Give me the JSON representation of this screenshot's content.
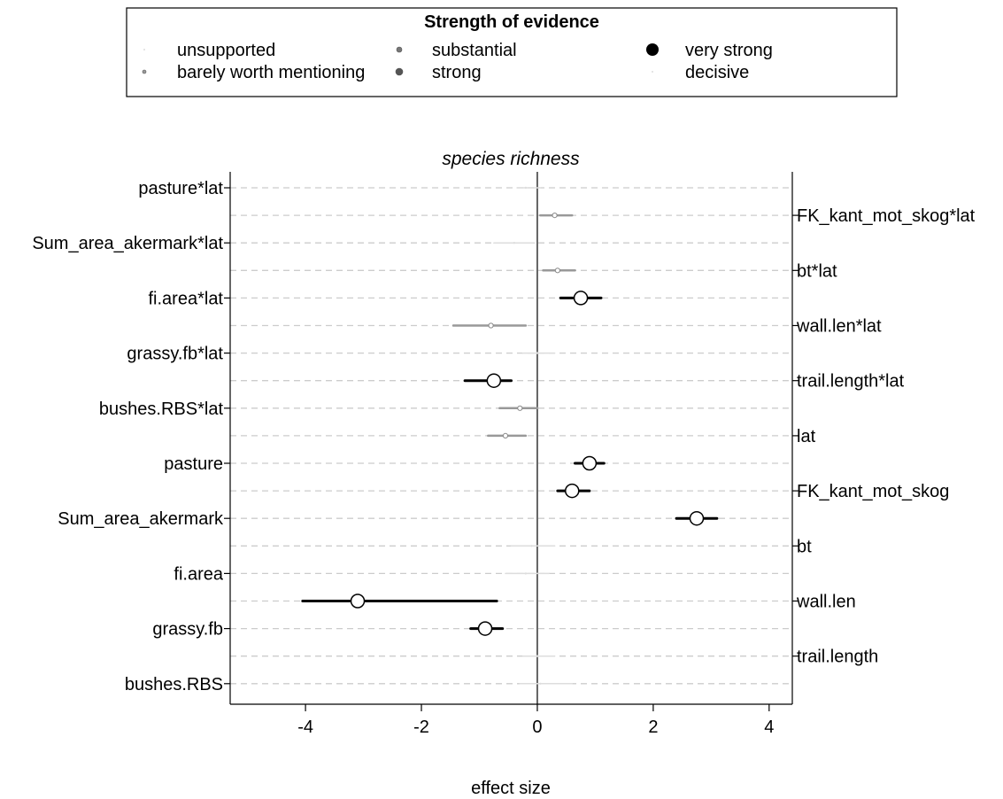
{
  "chart_data": {
    "type": "forest",
    "title": "species richness",
    "xlabel": "effect size",
    "xlim": [
      -5.3,
      4.4
    ],
    "xticks": [
      -4,
      -2,
      0,
      2,
      4
    ],
    "grid": "dashed horizontal",
    "legend": {
      "title": "Strength of evidence",
      "placement": "top",
      "entries": [
        {
          "label": "unsupported",
          "color": "#dddddd",
          "size": 1
        },
        {
          "label": "barely worth mentioning",
          "color": "#999999",
          "size": 2
        },
        {
          "label": "substantial",
          "color": "#777777",
          "size": 3
        },
        {
          "label": "strong",
          "color": "#555555",
          "size": 4
        },
        {
          "label": "very strong",
          "color": "#000000",
          "size": 7
        },
        {
          "label": "decisive",
          "color": "#dddddd",
          "size": 1
        }
      ]
    },
    "rows": [
      {
        "label": "pasture*lat",
        "side": "left",
        "est": -0.2,
        "lo": -0.35,
        "hi": 0.05,
        "evidence": "unsupported"
      },
      {
        "label": "FK_kant_mot_skog*lat",
        "side": "right",
        "est": 0.3,
        "lo": 0.05,
        "hi": 0.6,
        "evidence": "barely worth mentioning"
      },
      {
        "label": "Sum_area_akermark*lat",
        "side": "left",
        "est": -0.4,
        "lo": -0.75,
        "hi": -0.05,
        "evidence": "unsupported"
      },
      {
        "label": "bt*lat",
        "side": "right",
        "est": 0.35,
        "lo": 0.1,
        "hi": 0.65,
        "evidence": "barely worth mentioning"
      },
      {
        "label": "fi.area*lat",
        "side": "left",
        "est": 0.75,
        "lo": 0.4,
        "hi": 1.1,
        "evidence": "very strong"
      },
      {
        "label": "wall.len*lat",
        "side": "right",
        "est": -0.8,
        "lo": -1.45,
        "hi": -0.2,
        "evidence": "barely worth mentioning"
      },
      {
        "label": "grassy.fb*lat",
        "side": "left",
        "est": 0.0,
        "lo": -0.25,
        "hi": 0.3,
        "evidence": "unsupported"
      },
      {
        "label": "trail.length*lat",
        "side": "right",
        "est": -0.75,
        "lo": -1.25,
        "hi": -0.45,
        "evidence": "very strong"
      },
      {
        "label": "bushes.RBS*lat",
        "side": "left",
        "est": -0.3,
        "lo": -0.65,
        "hi": 0.0,
        "evidence": "barely worth mentioning"
      },
      {
        "label": "lat",
        "side": "right",
        "est": -0.55,
        "lo": -0.85,
        "hi": -0.2,
        "evidence": "barely worth mentioning"
      },
      {
        "label": "pasture",
        "side": "left",
        "est": 0.9,
        "lo": 0.65,
        "hi": 1.15,
        "evidence": "very strong"
      },
      {
        "label": "FK_kant_mot_skog",
        "side": "right",
        "est": 0.6,
        "lo": 0.35,
        "hi": 0.9,
        "evidence": "very strong"
      },
      {
        "label": "Sum_area_akermark",
        "side": "left",
        "est": 2.75,
        "lo": 2.4,
        "hi": 3.1,
        "evidence": "very strong"
      },
      {
        "label": "bt",
        "side": "right",
        "est": -0.1,
        "lo": -0.45,
        "hi": 0.3,
        "evidence": "unsupported"
      },
      {
        "label": "fi.area",
        "side": "left",
        "est": -0.2,
        "lo": -0.55,
        "hi": 0.2,
        "evidence": "unsupported"
      },
      {
        "label": "wall.len",
        "side": "right",
        "est": -3.1,
        "lo": -4.05,
        "hi": -0.7,
        "evidence": "very strong"
      },
      {
        "label": "grassy.fb",
        "side": "left",
        "est": -0.9,
        "lo": -1.15,
        "hi": -0.6,
        "evidence": "very strong"
      },
      {
        "label": "trail.length",
        "side": "right",
        "est": 0.0,
        "lo": -0.25,
        "hi": 0.3,
        "evidence": "unsupported"
      },
      {
        "label": "bushes.RBS",
        "side": "left",
        "est": 0.05,
        "lo": -0.3,
        "hi": 0.6,
        "evidence": "unsupported"
      }
    ]
  }
}
